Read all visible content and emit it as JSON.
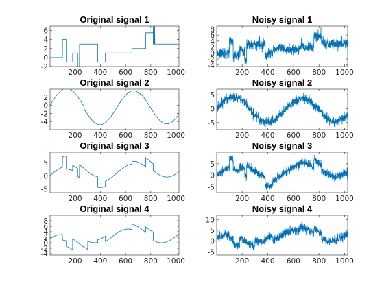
{
  "chart_data": [
    {
      "type": "line",
      "title": "Original signal 1",
      "color": "#0072BD",
      "xlim": [
        1,
        1024
      ],
      "ylim": [
        -2,
        7
      ],
      "xticks": [
        "200",
        "400",
        "600",
        "800",
        "1000"
      ],
      "yticks": [
        "-2",
        "0",
        "2",
        "4",
        "6"
      ],
      "noise": 0,
      "segments": [
        {
          "x": [
            1,
            100
          ],
          "shape": "const",
          "v": 0
        },
        {
          "x": [
            100,
            130
          ],
          "shape": "const",
          "v": 4
        },
        {
          "x": [
            130,
            180
          ],
          "shape": "const",
          "v": -1
        },
        {
          "x": [
            180,
            220
          ],
          "shape": "const",
          "v": 1
        },
        {
          "x": [
            220,
            235
          ],
          "shape": "const",
          "v": -2
        },
        {
          "x": [
            235,
            380
          ],
          "shape": "const",
          "v": 3
        },
        {
          "x": [
            380,
            440
          ],
          "shape": "const",
          "v": -1
        },
        {
          "x": [
            440,
            650
          ],
          "shape": "const",
          "v": 1
        },
        {
          "x": [
            650,
            760
          ],
          "shape": "const",
          "v": 2
        },
        {
          "x": [
            760,
            820
          ],
          "shape": "const",
          "v": 5.5
        },
        {
          "x": [
            820,
            840
          ],
          "shape": "const",
          "v": 3
        },
        {
          "x": [
            840,
            1024
          ],
          "shape": "const",
          "v": 3
        }
      ],
      "spikes": [
        {
          "x": 820,
          "v": 7.5
        },
        {
          "x": 825,
          "v": 7.5
        },
        {
          "x": 830,
          "v": 7
        }
      ]
    },
    {
      "type": "line",
      "title": "Noisy signal 1",
      "color": "#0072BD",
      "xlim": [
        1,
        1024
      ],
      "ylim": [
        -4.5,
        9
      ],
      "xticks": [
        "200",
        "400",
        "600",
        "800",
        "1000"
      ],
      "yticks": [
        "-4",
        "-2",
        "0",
        "2",
        "4",
        "6",
        "8"
      ],
      "noise": 0.9,
      "segments": [
        {
          "x": [
            1,
            100
          ],
          "shape": "const",
          "v": 0
        },
        {
          "x": [
            100,
            130
          ],
          "shape": "const",
          "v": 4
        },
        {
          "x": [
            130,
            180
          ],
          "shape": "const",
          "v": -1
        },
        {
          "x": [
            180,
            220
          ],
          "shape": "const",
          "v": 1
        },
        {
          "x": [
            220,
            235
          ],
          "shape": "const",
          "v": -3
        },
        {
          "x": [
            235,
            380
          ],
          "shape": "const",
          "v": 3
        },
        {
          "x": [
            380,
            440
          ],
          "shape": "const",
          "v": -0.5
        },
        {
          "x": [
            440,
            650
          ],
          "shape": "const",
          "v": 1.2
        },
        {
          "x": [
            650,
            760
          ],
          "shape": "const",
          "v": 2
        },
        {
          "x": [
            760,
            820
          ],
          "shape": "const",
          "v": 5.5
        },
        {
          "x": [
            820,
            840
          ],
          "shape": "const",
          "v": 4
        },
        {
          "x": [
            840,
            1024
          ],
          "shape": "const",
          "v": 3
        }
      ],
      "spikes": [
        {
          "x": 815,
          "v": 8.5
        }
      ]
    },
    {
      "type": "line",
      "title": "Original signal 2",
      "color": "#0072BD",
      "xlim": [
        1,
        1024
      ],
      "ylim": [
        -6,
        4
      ],
      "xticks": [
        "200",
        "400",
        "600",
        "800",
        "1000"
      ],
      "yticks": [
        "-4",
        "-2",
        "0",
        "2"
      ],
      "noise": 0,
      "segments": [
        {
          "x": [
            1,
            270
          ],
          "shape": "sin",
          "a": 4.2,
          "p": 530,
          "ph": 0,
          "off": 0
        },
        {
          "x": [
            270,
            720
          ],
          "shape": "sin",
          "a": 4.2,
          "p": 530,
          "ph": 0,
          "off": -0.6
        },
        {
          "x": [
            720,
            1024
          ],
          "shape": "sin",
          "a": 4.2,
          "p": 530,
          "ph": 0,
          "off": -0.4
        }
      ],
      "spikes": []
    },
    {
      "type": "line",
      "title": "Noisy signal 2",
      "color": "#0072BD",
      "xlim": [
        1,
        1024
      ],
      "ylim": [
        -7.5,
        7
      ],
      "xticks": [
        "200",
        "400",
        "600",
        "800",
        "1000"
      ],
      "yticks": [
        "-5",
        "0",
        "5"
      ],
      "noise": 0.9,
      "segments": [
        {
          "x": [
            1,
            270
          ],
          "shape": "sin",
          "a": 4.2,
          "p": 530,
          "ph": 0,
          "off": 0
        },
        {
          "x": [
            270,
            720
          ],
          "shape": "sin",
          "a": 4.2,
          "p": 530,
          "ph": 0,
          "off": -0.6
        },
        {
          "x": [
            720,
            1024
          ],
          "shape": "sin",
          "a": 4.2,
          "p": 530,
          "ph": 0,
          "off": -0.4
        }
      ],
      "spikes": []
    },
    {
      "type": "line",
      "title": "Original signal 3",
      "color": "#0072BD",
      "xlim": [
        1,
        1024
      ],
      "ylim": [
        -6.5,
        9
      ],
      "xticks": [
        "200",
        "400",
        "600",
        "800",
        "1000"
      ],
      "yticks": [
        "-5",
        "0",
        "5"
      ],
      "noise": 0,
      "segments": [
        {
          "x": [
            1,
            100
          ],
          "shape": "sin",
          "a": 3.5,
          "p": 530,
          "ph": 0,
          "off": 0
        },
        {
          "x": [
            100,
            130
          ],
          "shape": "sin",
          "a": 3.5,
          "p": 530,
          "ph": 0,
          "off": 4
        },
        {
          "x": [
            130,
            180
          ],
          "shape": "sin",
          "a": 3.5,
          "p": 530,
          "ph": 0,
          "off": -1
        },
        {
          "x": [
            180,
            220
          ],
          "shape": "sin",
          "a": 3.5,
          "p": 530,
          "ph": 0,
          "off": 1
        },
        {
          "x": [
            220,
            235
          ],
          "shape": "sin",
          "a": 3.5,
          "p": 530,
          "ph": 0,
          "off": -2
        },
        {
          "x": [
            235,
            380
          ],
          "shape": "sin",
          "a": 3.5,
          "p": 530,
          "ph": 0,
          "off": 3
        },
        {
          "x": [
            380,
            440
          ],
          "shape": "sin",
          "a": 3.5,
          "p": 530,
          "ph": 0,
          "off": -1
        },
        {
          "x": [
            440,
            650
          ],
          "shape": "sin",
          "a": 3.5,
          "p": 530,
          "ph": 0,
          "off": 1
        },
        {
          "x": [
            650,
            760
          ],
          "shape": "sin",
          "a": 3.5,
          "p": 530,
          "ph": 0,
          "off": 2
        },
        {
          "x": [
            760,
            820
          ],
          "shape": "sin",
          "a": 3.5,
          "p": 530,
          "ph": 0,
          "off": 5.5
        },
        {
          "x": [
            820,
            1024
          ],
          "shape": "sin",
          "a": 3.5,
          "p": 530,
          "ph": 0,
          "off": 3
        }
      ],
      "spikes": []
    },
    {
      "type": "line",
      "title": "Noisy signal 3",
      "color": "#0072BD",
      "xlim": [
        1,
        1024
      ],
      "ylim": [
        -7.5,
        10
      ],
      "xticks": [
        "200",
        "400",
        "600",
        "800",
        "1000"
      ],
      "yticks": [
        "-5",
        "0",
        "5"
      ],
      "noise": 0.9,
      "segments": [
        {
          "x": [
            1,
            100
          ],
          "shape": "sin",
          "a": 3.5,
          "p": 530,
          "ph": 0,
          "off": 0
        },
        {
          "x": [
            100,
            130
          ],
          "shape": "sin",
          "a": 3.5,
          "p": 530,
          "ph": 0,
          "off": 4
        },
        {
          "x": [
            130,
            180
          ],
          "shape": "sin",
          "a": 3.5,
          "p": 530,
          "ph": 0,
          "off": -1
        },
        {
          "x": [
            180,
            220
          ],
          "shape": "sin",
          "a": 3.5,
          "p": 530,
          "ph": 0,
          "off": 1
        },
        {
          "x": [
            220,
            235
          ],
          "shape": "sin",
          "a": 3.5,
          "p": 530,
          "ph": 0,
          "off": -2
        },
        {
          "x": [
            235,
            380
          ],
          "shape": "sin",
          "a": 3.5,
          "p": 530,
          "ph": 0,
          "off": 3
        },
        {
          "x": [
            380,
            440
          ],
          "shape": "sin",
          "a": 3.5,
          "p": 530,
          "ph": 0,
          "off": -1
        },
        {
          "x": [
            440,
            650
          ],
          "shape": "sin",
          "a": 3.5,
          "p": 530,
          "ph": 0,
          "off": 1
        },
        {
          "x": [
            650,
            760
          ],
          "shape": "sin",
          "a": 3.5,
          "p": 530,
          "ph": 0,
          "off": 2
        },
        {
          "x": [
            760,
            820
          ],
          "shape": "sin",
          "a": 3.5,
          "p": 530,
          "ph": 0,
          "off": 5.5
        },
        {
          "x": [
            820,
            1024
          ],
          "shape": "sin",
          "a": 3.5,
          "p": 530,
          "ph": 0,
          "off": 3
        }
      ],
      "spikes": []
    },
    {
      "type": "line",
      "title": "Original signal 4",
      "color": "#0072BD",
      "xlim": [
        1,
        1024
      ],
      "ylim": [
        -4.5,
        10
      ],
      "xticks": [
        "200",
        "400",
        "600",
        "800",
        "1000"
      ],
      "yticks": [
        "-4",
        "-2",
        "0",
        "2",
        "4",
        "6",
        "8"
      ],
      "noise": 0,
      "segments": [
        {
          "x": [
            1,
            100
          ],
          "shape": "sin",
          "a": 3,
          "p": 530,
          "ph": 0.5,
          "off": 0
        },
        {
          "x": [
            100,
            130
          ],
          "shape": "sin",
          "a": 3,
          "p": 530,
          "ph": 0.5,
          "off": -2
        },
        {
          "x": [
            130,
            180
          ],
          "shape": "sin",
          "a": 3,
          "p": 530,
          "ph": 0.5,
          "off": -4
        },
        {
          "x": [
            180,
            300
          ],
          "shape": "sin",
          "a": 3,
          "p": 530,
          "ph": 0.5,
          "off": 0
        },
        {
          "x": [
            300,
            380
          ],
          "shape": "sin",
          "a": 3,
          "p": 530,
          "ph": 0.5,
          "off": 3
        },
        {
          "x": [
            380,
            440
          ],
          "shape": "sin",
          "a": 3,
          "p": 530,
          "ph": 0.5,
          "off": 4
        },
        {
          "x": [
            440,
            650
          ],
          "shape": "sin",
          "a": 3,
          "p": 530,
          "ph": 0.5,
          "off": 2
        },
        {
          "x": [
            650,
            760
          ],
          "shape": "sin",
          "a": 3,
          "p": 530,
          "ph": 0.5,
          "off": 4
        },
        {
          "x": [
            760,
            820
          ],
          "shape": "sin",
          "a": 3,
          "p": 530,
          "ph": 0.5,
          "off": 6
        },
        {
          "x": [
            820,
            1024
          ],
          "shape": "sin",
          "a": 3,
          "p": 530,
          "ph": 0.5,
          "off": 3
        }
      ],
      "spikes": []
    },
    {
      "type": "line",
      "title": "Noisy signal 4",
      "color": "#0072BD",
      "xlim": [
        1,
        1024
      ],
      "ylim": [
        -6.5,
        12
      ],
      "xticks": [
        "200",
        "400",
        "600",
        "800",
        "1000"
      ],
      "yticks": [
        "-5",
        "0",
        "5",
        "10"
      ],
      "noise": 1.0,
      "segments": [
        {
          "x": [
            1,
            100
          ],
          "shape": "sin",
          "a": 3,
          "p": 530,
          "ph": 0.5,
          "off": 0
        },
        {
          "x": [
            100,
            130
          ],
          "shape": "sin",
          "a": 3,
          "p": 530,
          "ph": 0.5,
          "off": -2
        },
        {
          "x": [
            130,
            180
          ],
          "shape": "sin",
          "a": 3,
          "p": 530,
          "ph": 0.5,
          "off": -4
        },
        {
          "x": [
            180,
            300
          ],
          "shape": "sin",
          "a": 3,
          "p": 530,
          "ph": 0.5,
          "off": 0
        },
        {
          "x": [
            300,
            380
          ],
          "shape": "sin",
          "a": 3,
          "p": 530,
          "ph": 0.5,
          "off": 3
        },
        {
          "x": [
            380,
            440
          ],
          "shape": "sin",
          "a": 3,
          "p": 530,
          "ph": 0.5,
          "off": 4
        },
        {
          "x": [
            440,
            650
          ],
          "shape": "sin",
          "a": 3,
          "p": 530,
          "ph": 0.5,
          "off": 2
        },
        {
          "x": [
            650,
            760
          ],
          "shape": "sin",
          "a": 3,
          "p": 530,
          "ph": 0.5,
          "off": 4
        },
        {
          "x": [
            760,
            820
          ],
          "shape": "sin",
          "a": 3,
          "p": 530,
          "ph": 0.5,
          "off": 6
        },
        {
          "x": [
            820,
            1024
          ],
          "shape": "sin",
          "a": 3,
          "p": 530,
          "ph": 0.5,
          "off": 3
        }
      ],
      "spikes": []
    }
  ]
}
